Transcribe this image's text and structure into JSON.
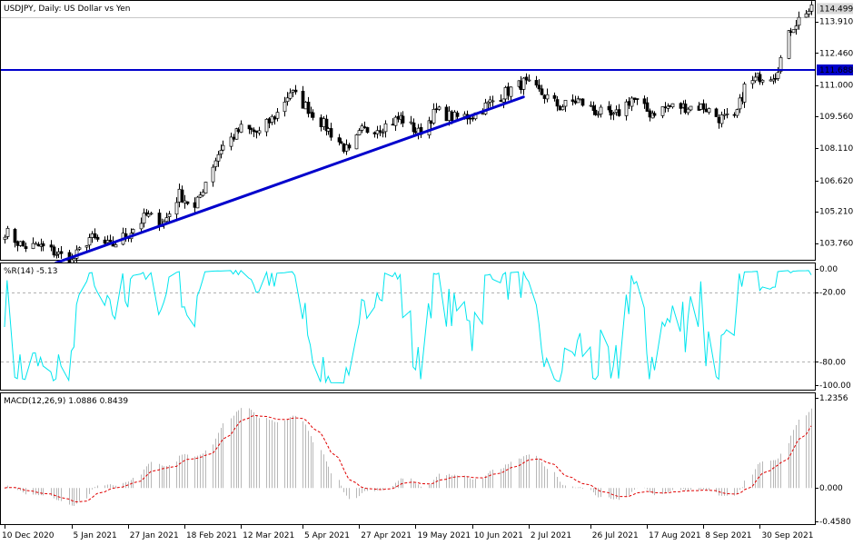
{
  "chart_data": [
    {
      "type": "candlestick",
      "symbol": "USDJPY",
      "timeframe": "Daily",
      "title": "USDJPY, Daily:  US Dollar vs Yen",
      "price_ticks": [
        "114.499",
        "113.910",
        "112.460",
        "111.688",
        "111.000",
        "109.560",
        "108.110",
        "106.620",
        "105.210",
        "103.760"
      ],
      "current_price": 114.499,
      "ylim": [
        102.95,
        114.85
      ],
      "horizontal_line": {
        "value": 111.688,
        "label": "111.688",
        "color": "#0000cc"
      },
      "trendline": {
        "from": {
          "date": "30 Dec 2020",
          "value": 102.85
        },
        "to": {
          "date": "30 Jun 2021",
          "value": 110.45
        },
        "color": "#0000cc"
      },
      "colors": {
        "bull": "#ffffff",
        "bear": "#000000",
        "wick": "#000000",
        "price_tag": "#d8d8d8",
        "hline_tag": "#0000cc"
      },
      "anchors": [
        {
          "date": "10 Dec 2020",
          "value": 104.3
        },
        {
          "date": "17 Dec 2020",
          "value": 103.6
        },
        {
          "date": "24 Dec 2020",
          "value": 103.6
        },
        {
          "date": "30 Dec 2020",
          "value": 103.3
        },
        {
          "date": "5 Jan 2021",
          "value": 102.9
        },
        {
          "date": "12 Jan 2021",
          "value": 104.0
        },
        {
          "date": "20 Jan 2021",
          "value": 103.6
        },
        {
          "date": "27 Jan 2021",
          "value": 104.2
        },
        {
          "date": "3 Feb 2021",
          "value": 105.0
        },
        {
          "date": "10 Feb 2021",
          "value": 104.7
        },
        {
          "date": "16 Feb 2021",
          "value": 106.0
        },
        {
          "date": "22 Feb 2021",
          "value": 105.3
        },
        {
          "date": "26 Feb 2021",
          "value": 106.6
        },
        {
          "date": "4 Mar 2021",
          "value": 108.1
        },
        {
          "date": "12 Mar 2021",
          "value": 109.0
        },
        {
          "date": "19 Mar 2021",
          "value": 108.8
        },
        {
          "date": "26 Mar 2021",
          "value": 109.7
        },
        {
          "date": "31 Mar 2021",
          "value": 110.7
        },
        {
          "date": "9 Apr 2021",
          "value": 109.7
        },
        {
          "date": "16 Apr 2021",
          "value": 108.8
        },
        {
          "date": "23 Apr 2021",
          "value": 107.9
        },
        {
          "date": "28 Apr 2021",
          "value": 108.9
        },
        {
          "date": "6 May 2021",
          "value": 109.1
        },
        {
          "date": "13 May 2021",
          "value": 109.5
        },
        {
          "date": "20 May 2021",
          "value": 108.8
        },
        {
          "date": "27 May 2021",
          "value": 109.8
        },
        {
          "date": "3 Jun 2021",
          "value": 109.5
        },
        {
          "date": "10 Jun 2021",
          "value": 109.6
        },
        {
          "date": "17 Jun 2021",
          "value": 110.2
        },
        {
          "date": "25 Jun 2021",
          "value": 110.8
        },
        {
          "date": "30 Jun 2021",
          "value": 111.1
        },
        {
          "date": "7 Jul 2021",
          "value": 110.6
        },
        {
          "date": "14 Jul 2021",
          "value": 110.0
        },
        {
          "date": "21 Jul 2021",
          "value": 110.3
        },
        {
          "date": "28 Jul 2021",
          "value": 109.8
        },
        {
          "date": "4 Aug 2021",
          "value": 109.5
        },
        {
          "date": "11 Aug 2021",
          "value": 110.4
        },
        {
          "date": "18 Aug 2021",
          "value": 109.7
        },
        {
          "date": "25 Aug 2021",
          "value": 110.0
        },
        {
          "date": "1 Sep 2021",
          "value": 110.0
        },
        {
          "date": "8 Sep 2021",
          "value": 110.0
        },
        {
          "date": "14 Sep 2021",
          "value": 109.5
        },
        {
          "date": "20 Sep 2021",
          "value": 109.4
        },
        {
          "date": "24 Sep 2021",
          "value": 110.9
        },
        {
          "date": "30 Sep 2021",
          "value": 111.4
        },
        {
          "date": "6 Oct 2021",
          "value": 111.5
        },
        {
          "date": "12 Oct 2021",
          "value": 113.6
        },
        {
          "date": "18 Oct 2021",
          "value": 114.4
        }
      ],
      "x_ticks": [
        "10 Dec 2020",
        "5 Jan 2021",
        "27 Jan 2021",
        "18 Feb 2021",
        "12 Mar 2021",
        "5 Apr 2021",
        "27 Apr 2021",
        "19 May 2021",
        "10 Jun 2021",
        "2 Jul 2021",
        "26 Jul 2021",
        "17 Aug 2021",
        "8 Sep 2021",
        "30 Sep 2021"
      ],
      "x_range": [
        "10 Dec 2020",
        "20 Oct 2021"
      ]
    },
    {
      "type": "line",
      "indicator": "%R(14)",
      "label": "%R(14) -5.13",
      "value": -5.13,
      "y_ticks": [
        "0.00",
        "-20.00",
        "-80.00",
        "-100.00"
      ],
      "ylim": [
        -100,
        0
      ],
      "levels": [
        -20,
        -80
      ],
      "color": "#00e5ee"
    },
    {
      "type": "bar",
      "indicator": "MACD(12,26,9)",
      "label": "MACD(12,26,9) 1.0886 0.8439",
      "macd": 1.0886,
      "signal": 0.8439,
      "y_ticks": [
        "1.2356",
        "0.000",
        "-0.4580"
      ],
      "ylim": [
        -0.458,
        1.2356
      ],
      "colors": {
        "histogram": "#b8b8b8",
        "signal": "#e00000"
      }
    }
  ]
}
